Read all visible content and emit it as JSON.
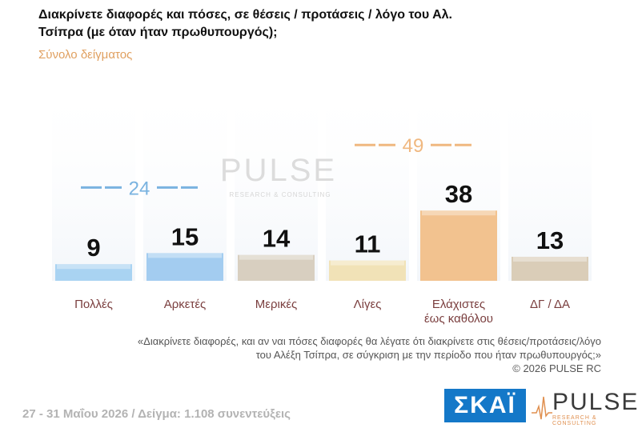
{
  "title": "Διακρίνετε διαφορές και πόσες, σε θέσεις / προτάσεις / λόγο του Αλ. Τσίπρα (με όταν ήταν πρωθυπουργός);",
  "subtitle": "Σύνολο δείγματος",
  "watermark": {
    "word": "PULSE",
    "sub": "RESEARCH & CONSULTING"
  },
  "chart_data": {
    "type": "bar",
    "categories": [
      "Πολλές",
      "Αρκετές",
      "Μερικές",
      "Λίγες",
      "Ελάχιστες\nέως καθόλου",
      "ΔΓ / ΔΑ"
    ],
    "values": [
      9,
      15,
      14,
      11,
      38,
      13
    ],
    "value_labels": [
      "9",
      "15",
      "14",
      "11",
      "38",
      "13"
    ],
    "bar_colors": [
      "#a9d3f2",
      "#a3ccf0",
      "#d8cfc0",
      "#f1e2b7",
      "#f2c28f",
      "#dacdb8"
    ],
    "ylim": [
      0,
      100
    ],
    "groups": [
      {
        "label": "24",
        "from": 0,
        "to": 1,
        "color": "#7ab3e0"
      },
      {
        "label": "49",
        "from": 3,
        "to": 4,
        "color": "#f0b880"
      }
    ]
  },
  "note": {
    "line1": "«Διακρίνετε διαφορές, και αν ναι πόσες διαφορές θα λέγατε ότι διακρίνετε στις θέσεις/προτάσεις/λόγο",
    "line2": "του Αλέξη Τσίπρα, σε σύγκριση με την περίοδο που ήταν πρωθυπουργός;»",
    "copyright": "©  2026  PULSE RC"
  },
  "footer": {
    "text": "27 - 31  Μαΐου 2026  /  Δείγμα:  1.108 συνεντεύξεις"
  },
  "logos": {
    "skai": "ΣΚΑΪ",
    "pulse_word": "PULSE",
    "pulse_sub": "RESEARCH & CONSULTING"
  }
}
